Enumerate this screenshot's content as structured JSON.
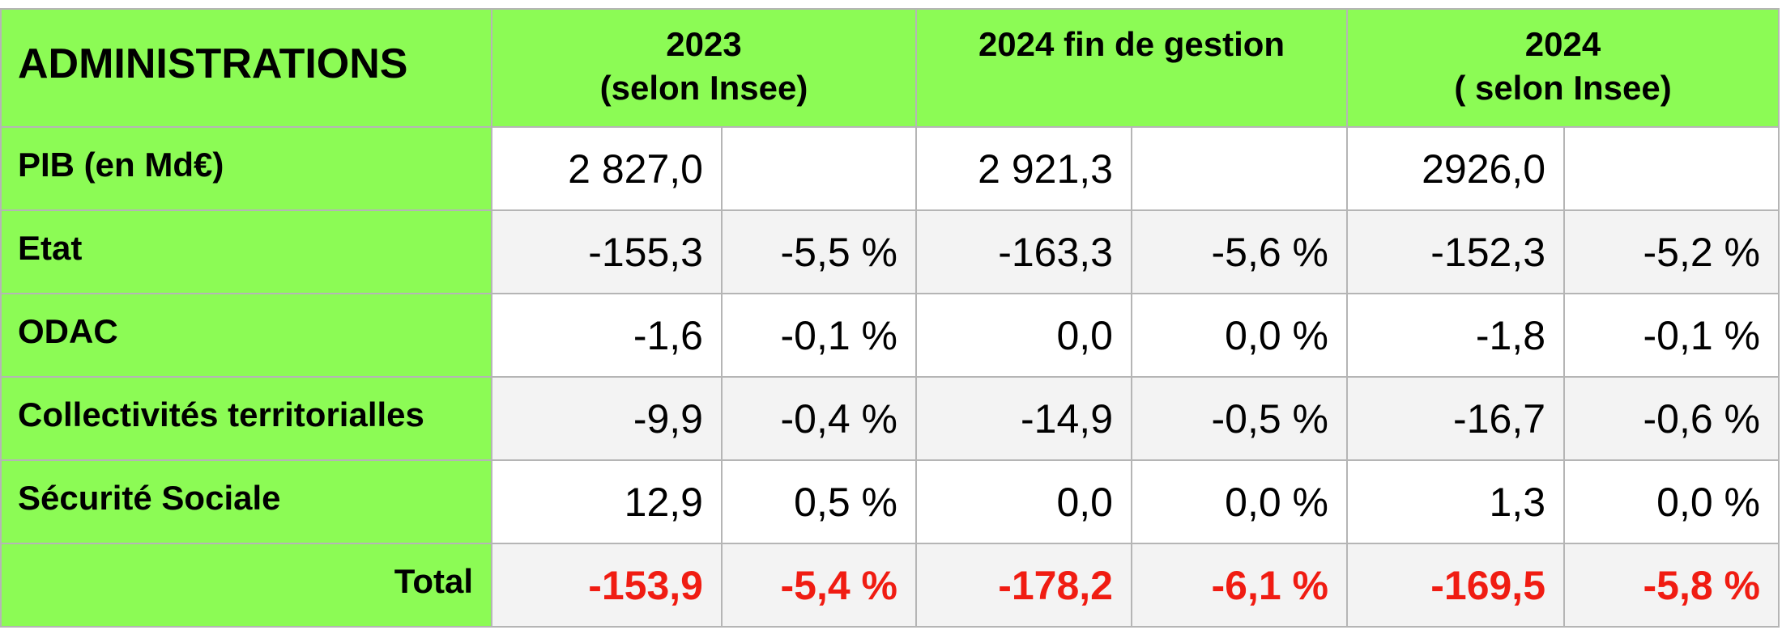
{
  "table": {
    "corner_label": "ADMINISTRATIONS",
    "columns": [
      {
        "line1": "2023",
        "line2": "(selon Insee)"
      },
      {
        "line1": "2024 fin de gestion",
        "line2": ""
      },
      {
        "line1": "2024",
        "line2": "( selon Insee)"
      }
    ],
    "rows": [
      {
        "label": "PIB (en Md€)",
        "values": [
          "2 827,0",
          "",
          "2 921,3",
          "",
          "2926,0",
          ""
        ]
      },
      {
        "label": "Etat",
        "values": [
          "-155,3",
          "-5,5 %",
          "-163,3",
          "-5,6 %",
          "-152,3",
          "-5,2 %"
        ]
      },
      {
        "label": "ODAC",
        "values": [
          "-1,6",
          "-0,1 %",
          "0,0",
          "0,0 %",
          "-1,8",
          "-0,1 %"
        ]
      },
      {
        "label": "Collectivités territorialles",
        "values": [
          "-9,9",
          "-0,4 %",
          "-14,9",
          "-0,5 %",
          "-16,7",
          "-0,6 %"
        ]
      },
      {
        "label": "Sécurité Sociale",
        "values": [
          "12,9",
          "0,5 %",
          "0,0",
          "0,0 %",
          "1,3",
          "0,0 %"
        ]
      }
    ],
    "total": {
      "label": "Total",
      "values": [
        "-153,9",
        "-5,4 %",
        "-178,2",
        "-6,1 %",
        "-169,5",
        "-5,8 %"
      ]
    },
    "colors": {
      "header_green": "#8cfb55",
      "total_red": "#f01c12",
      "shaded_row": "#f3f3f3",
      "grid": "#b5b5b5"
    }
  }
}
